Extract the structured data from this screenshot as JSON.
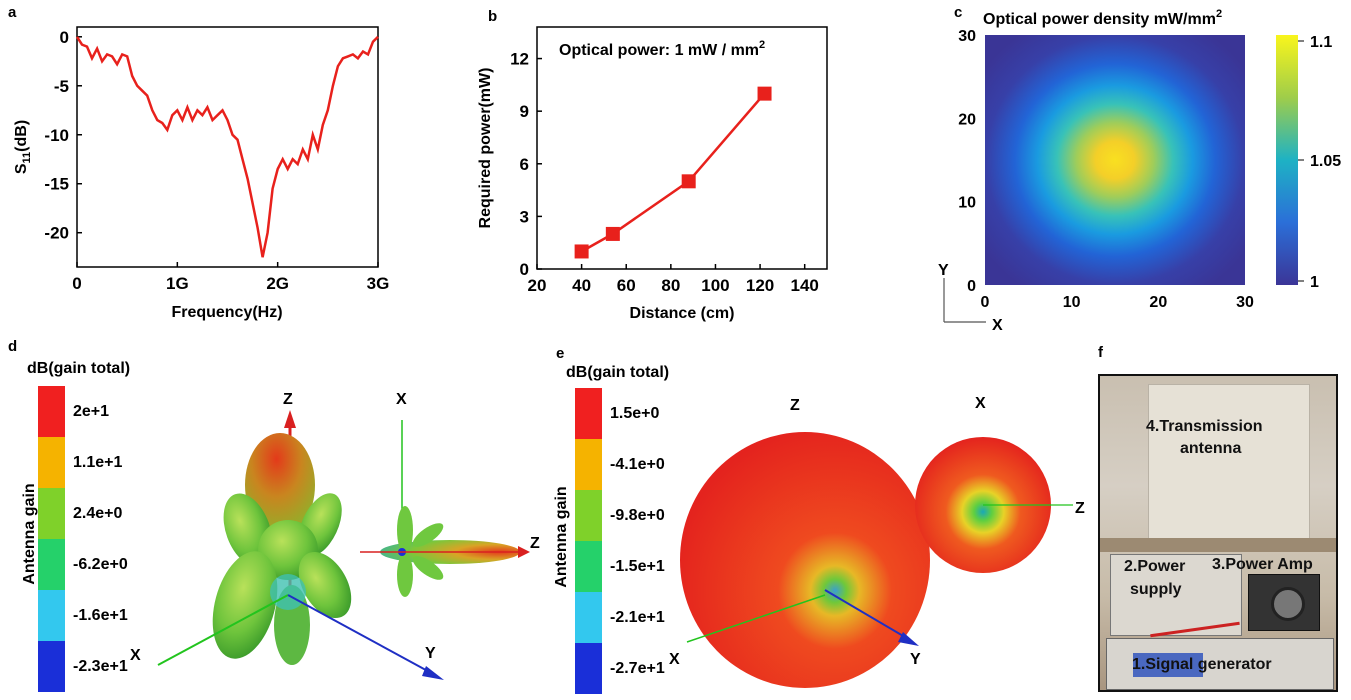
{
  "panels": {
    "a": "a",
    "b": "b",
    "c": "c",
    "d": "d",
    "e": "e",
    "f": "f"
  },
  "chart_data": [
    {
      "panel": "a",
      "type": "line",
      "title": "",
      "xlabel": "Frequency(Hz)",
      "ylabel_main": "S",
      "ylabel_sub": "11",
      "ylabel_rest": "(dB)",
      "xlim": [
        0,
        3
      ],
      "ylim": [
        -23.5,
        1
      ],
      "xticks": [
        0,
        1,
        2,
        3
      ],
      "xtick_labels": [
        "0",
        "1G",
        "2G",
        "3G"
      ],
      "yticks": [
        0,
        -5,
        -10,
        -15,
        -20
      ],
      "ytick_labels": [
        "0",
        "-5",
        "-10",
        "-15",
        "-20"
      ],
      "color": "#e8211c",
      "x": [
        0,
        0.05,
        0.1,
        0.15,
        0.2,
        0.25,
        0.3,
        0.35,
        0.4,
        0.45,
        0.5,
        0.55,
        0.6,
        0.65,
        0.7,
        0.75,
        0.8,
        0.85,
        0.9,
        0.95,
        1.0,
        1.05,
        1.1,
        1.15,
        1.2,
        1.25,
        1.3,
        1.35,
        1.4,
        1.45,
        1.5,
        1.55,
        1.6,
        1.65,
        1.7,
        1.75,
        1.8,
        1.85,
        1.9,
        1.95,
        2.0,
        2.05,
        2.1,
        2.15,
        2.2,
        2.25,
        2.3,
        2.35,
        2.4,
        2.45,
        2.5,
        2.55,
        2.6,
        2.65,
        2.7,
        2.75,
        2.8,
        2.85,
        2.9,
        2.95,
        3.0
      ],
      "y": [
        0,
        -0.8,
        -1.0,
        -2.2,
        -1.2,
        -2.5,
        -1.8,
        -2.0,
        -2.8,
        -1.8,
        -2.0,
        -4.0,
        -5.0,
        -5.5,
        -6.0,
        -7.5,
        -8.5,
        -8.8,
        -9.5,
        -8.0,
        -7.5,
        -8.5,
        -7.2,
        -8.5,
        -7.5,
        -8.0,
        -7.2,
        -8.5,
        -8.0,
        -7.5,
        -8.5,
        -10.0,
        -10.5,
        -12.5,
        -14.5,
        -17.0,
        -19.5,
        -22.5,
        -20.0,
        -15.5,
        -13.5,
        -12.5,
        -13.5,
        -12.5,
        -13.0,
        -11.5,
        -12.5,
        -10.0,
        -11.5,
        -9.0,
        -7.5,
        -5.0,
        -3.0,
        -2.2,
        -2.0,
        -1.8,
        -2.2,
        -1.5,
        -1.8,
        -0.5,
        0
      ]
    },
    {
      "panel": "b",
      "type": "line",
      "title": "",
      "annotation_main": "Optical power: 1 mW / mm",
      "annotation_sup": "2",
      "xlabel": "Distance (cm)",
      "ylabel": "Required power(mW)",
      "xlim": [
        20,
        150
      ],
      "ylim": [
        0,
        13.8
      ],
      "xticks": [
        20,
        40,
        60,
        80,
        100,
        120,
        140
      ],
      "yticks": [
        0,
        3,
        6,
        9,
        12
      ],
      "color": "#e8211c",
      "x": [
        40,
        54,
        88,
        122
      ],
      "y": [
        1,
        2,
        5,
        10
      ]
    },
    {
      "panel": "c",
      "type": "heatmap",
      "title_main": "Optical power density mW/mm",
      "title_sup": "2",
      "xlim": [
        0,
        30
      ],
      "ylim": [
        0,
        30
      ],
      "xticks": [
        0,
        10,
        20,
        30
      ],
      "yticks": [
        0,
        10,
        20,
        30
      ],
      "colorbar_ticks": [
        1,
        1.05,
        1.1
      ],
      "colorbar_labels": [
        "1",
        "1.05",
        "1.1"
      ],
      "center": [
        15,
        15
      ],
      "peak_value": 1.1,
      "min_value": 1,
      "axis_x": "X",
      "axis_y": "Y"
    }
  ],
  "panel_d": {
    "legend_title": "dB(gain total)",
    "side_label": "Antenna gain",
    "legend_values": [
      "2e+1",
      "1.1e+1",
      "2.4e+0",
      "-6.2e+0",
      "-1.6e+1",
      "-2.3e+1"
    ],
    "legend_colors": [
      "#f02020",
      "#f5b300",
      "#7fd12a",
      "#25d16a",
      "#33c8ee",
      "#1a2fd8"
    ],
    "axis_labels": {
      "z1": "Z",
      "x1": "X",
      "y1": "Y",
      "x2": "X",
      "z2": "Z"
    }
  },
  "panel_e": {
    "legend_title": "dB(gain total)",
    "side_label": "Antenna gain",
    "legend_values": [
      "1.5e+0",
      "-4.1e+0",
      "-9.8e+0",
      "-1.5e+1",
      "-2.1e+1",
      "-2.7e+1"
    ],
    "legend_colors": [
      "#f02020",
      "#f5b300",
      "#7fd12a",
      "#25d16a",
      "#33c8ee",
      "#1a2fd8"
    ],
    "axis_labels": {
      "z1": "Z",
      "x1": "X",
      "y1": "Y",
      "x2": "X",
      "z2": "Z"
    }
  },
  "panel_f": {
    "labels": {
      "antenna_l1": "4.Transmission",
      "antenna_l2": "antenna",
      "power_l1": "2.Power",
      "power_l2": "supply",
      "amp": "3.Power Amp",
      "generator": "1.Signal generator"
    }
  }
}
